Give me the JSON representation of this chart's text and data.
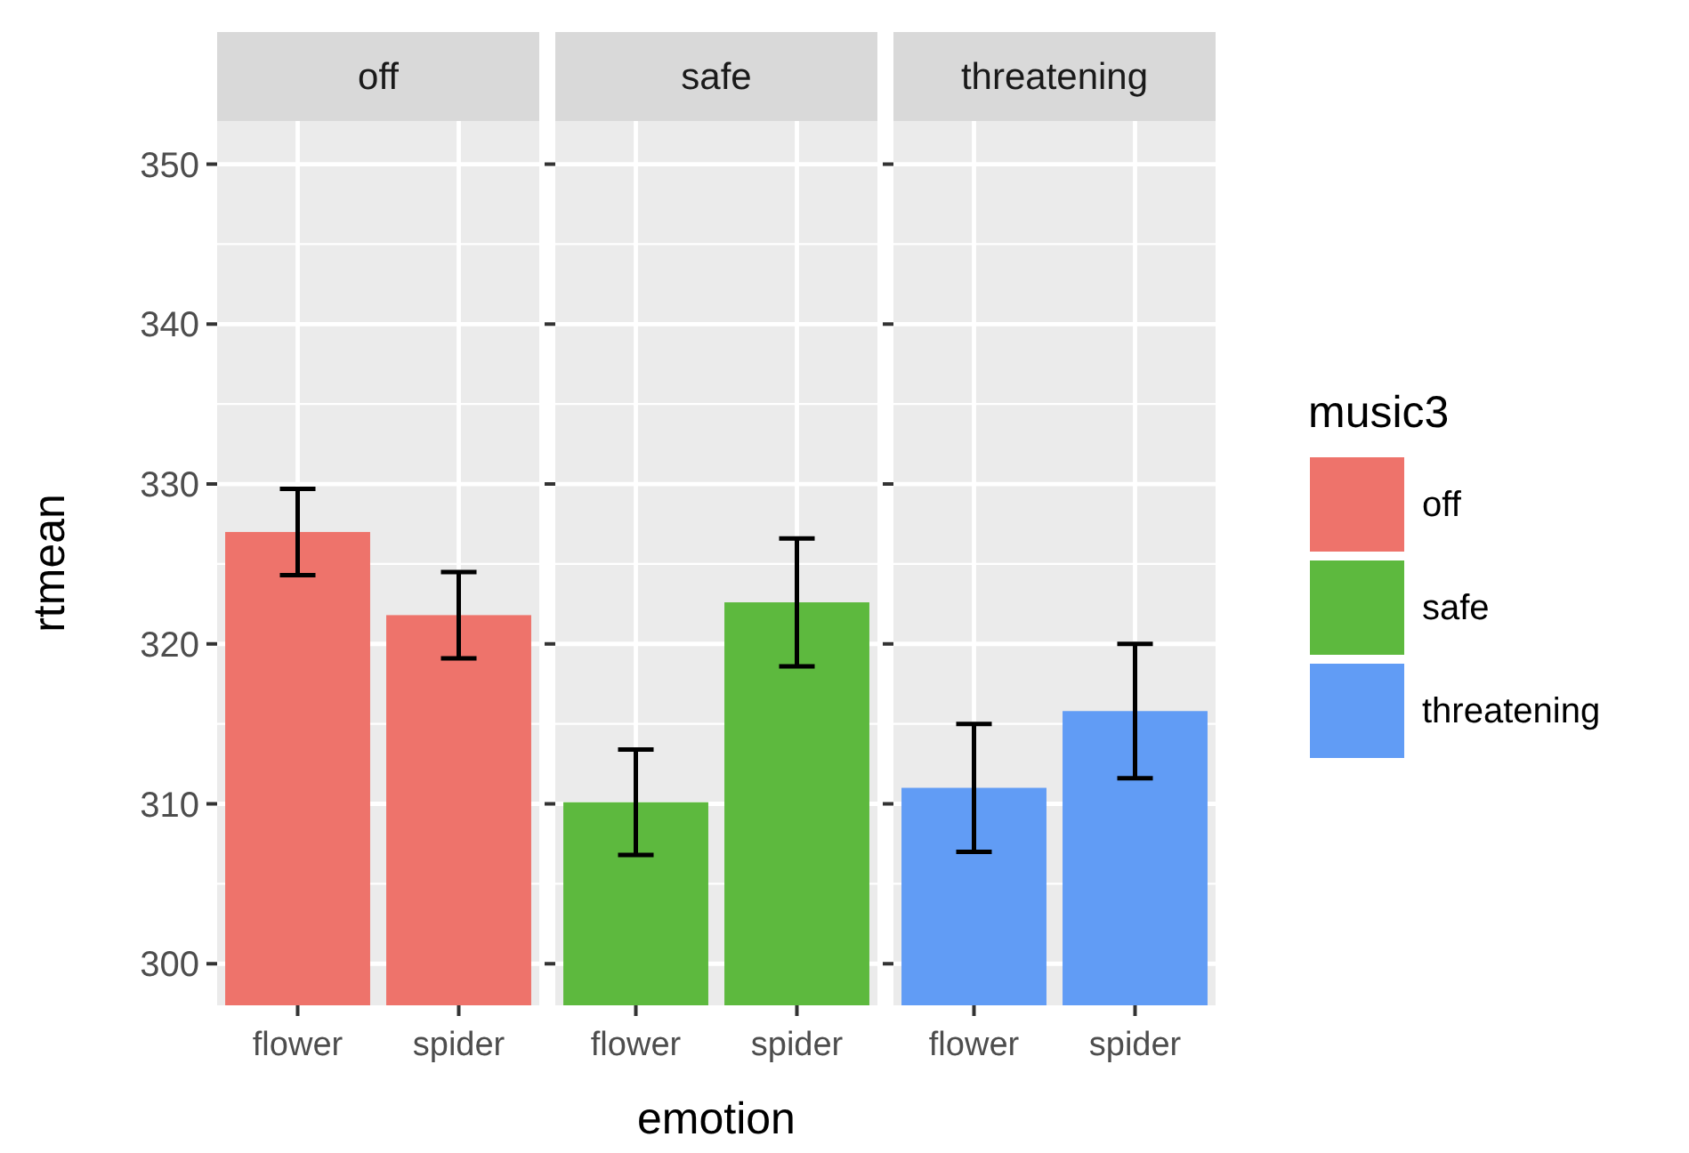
{
  "chart_data": [
    {
      "type": "bar",
      "title": "off",
      "ylabel": "rtmean",
      "categories": [
        "flower",
        "spider"
      ],
      "ylim": [
        297.4,
        352.7
      ],
      "yticks": [
        300,
        310,
        320,
        330,
        340,
        350
      ],
      "grid": true,
      "legend": "right",
      "tick_labels": "xy",
      "series": [
        {
          "name": "off",
          "color": "#ee736b",
          "values": [
            327.0,
            321.8
          ],
          "errors": [
            2.7,
            2.7
          ]
        }
      ]
    },
    {
      "type": "bar",
      "title": "safe",
      "xlabel": "emotion",
      "categories": [
        "flower",
        "spider"
      ],
      "ylim": [
        297.4,
        352.7
      ],
      "yticks": [
        300,
        310,
        320,
        330,
        340,
        350
      ],
      "grid": true,
      "legend": "right",
      "tick_labels": "x",
      "series": [
        {
          "name": "safe",
          "color": "#5db93e",
          "values": [
            310.1,
            322.6
          ],
          "errors": [
            3.3,
            4.0
          ]
        }
      ]
    },
    {
      "type": "bar",
      "title": "threatening",
      "legend_title": "music3",
      "categories": [
        "flower",
        "spider"
      ],
      "ylim": [
        297.4,
        352.7
      ],
      "yticks": [
        300,
        310,
        320,
        330,
        340,
        350
      ],
      "grid": true,
      "legend": "right",
      "tick_labels": "x",
      "series": [
        {
          "name": "threatening",
          "color": "#619cf5",
          "values": [
            311.0,
            315.8
          ],
          "errors": [
            4.0,
            4.2
          ]
        }
      ]
    }
  ]
}
